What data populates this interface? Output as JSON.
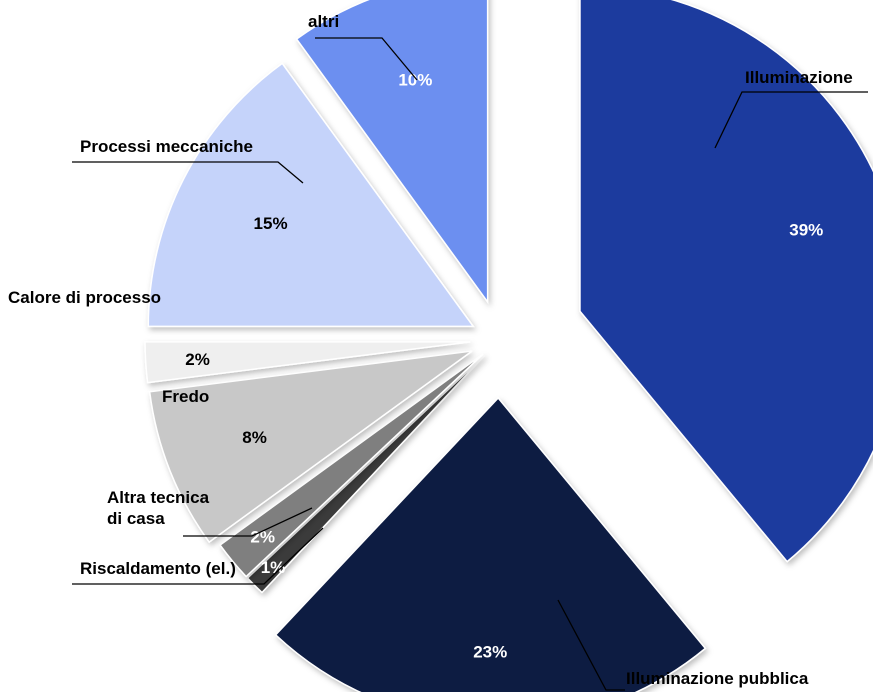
{
  "chart_data": {
    "type": "pie",
    "title": "",
    "exploded": true,
    "slices": [
      {
        "name": "Illuminazione",
        "value": 39,
        "label": "39%",
        "color": "#1f3a9e"
      },
      {
        "name": "Illuminazione pubblica",
        "value": 23,
        "label": "23%",
        "color": "#0d1a42"
      },
      {
        "name": "Riscaldamento (el.)",
        "value": 1,
        "label": "1%",
        "color": "#3a3a3a"
      },
      {
        "name": "Altra tecnica di casa",
        "value": 2,
        "label": "2%",
        "color": "#7f7f7f"
      },
      {
        "name": "Fredo",
        "value": 8,
        "label": "8%",
        "color": "#c8c8c8"
      },
      {
        "name": "Calore di processo",
        "value": 2,
        "label": "2%",
        "color": "#efefef"
      },
      {
        "name": "Processi meccaniche",
        "value": 15,
        "label": "15%",
        "color": "#c5d3fa"
      },
      {
        "name": "altri",
        "value": 10,
        "label": "10%",
        "color": "#6c8ff0"
      }
    ]
  }
}
